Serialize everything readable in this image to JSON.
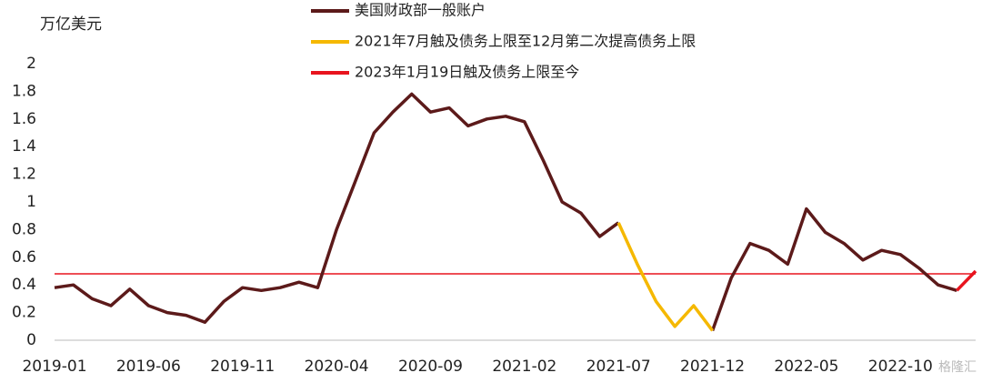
{
  "chart_data": {
    "type": "line",
    "y_label": "万亿美元",
    "categories": [
      "2019-01",
      null,
      null,
      null,
      null,
      "2019-06",
      null,
      null,
      null,
      null,
      "2019-11",
      null,
      null,
      null,
      null,
      "2020-04",
      null,
      null,
      null,
      null,
      "2020-09",
      null,
      null,
      null,
      null,
      "2021-02",
      null,
      null,
      null,
      null,
      "2021-07",
      null,
      null,
      null,
      null,
      "2021-12",
      null,
      null,
      null,
      null,
      "2022-05",
      null,
      null,
      null,
      null,
      "2022-10",
      null,
      null,
      null,
      null
    ],
    "series": [
      {
        "name": "美国财政部一般账户",
        "color": "#5c1a1a",
        "values": [
          0.38,
          0.4,
          0.3,
          0.25,
          0.37,
          0.25,
          0.2,
          0.18,
          0.13,
          0.28,
          0.38,
          0.36,
          0.38,
          0.42,
          0.38,
          0.8,
          1.15,
          1.5,
          1.65,
          1.78,
          1.65,
          1.68,
          1.55,
          1.6,
          1.62,
          1.58,
          1.3,
          1.0,
          0.92,
          0.75,
          0.85,
          null,
          null,
          null,
          null,
          0.07,
          0.45,
          0.7,
          0.65,
          0.55,
          0.95,
          0.78,
          0.7,
          0.58,
          0.65,
          0.62,
          0.52,
          0.4,
          0.36,
          null
        ]
      },
      {
        "name": "2021年7月触及债务上限至12月第二次提高债务上限",
        "color": "#f5b800",
        "values": [
          null,
          null,
          null,
          null,
          null,
          null,
          null,
          null,
          null,
          null,
          null,
          null,
          null,
          null,
          null,
          null,
          null,
          null,
          null,
          null,
          null,
          null,
          null,
          null,
          null,
          null,
          null,
          null,
          null,
          null,
          0.85,
          0.55,
          0.28,
          0.1,
          0.25,
          0.07,
          null,
          null,
          null,
          null,
          null,
          null,
          null,
          null,
          null,
          null,
          null,
          null,
          null,
          null
        ]
      },
      {
        "name": "2023年1月19日触及债务上限至今",
        "color": "#e8141e",
        "values": [
          null,
          null,
          null,
          null,
          null,
          null,
          null,
          null,
          null,
          null,
          null,
          null,
          null,
          null,
          null,
          null,
          null,
          null,
          null,
          null,
          null,
          null,
          null,
          null,
          null,
          null,
          null,
          null,
          null,
          null,
          null,
          null,
          null,
          null,
          null,
          null,
          null,
          null,
          null,
          null,
          null,
          null,
          null,
          null,
          null,
          null,
          null,
          null,
          0.36,
          0.5
        ]
      }
    ],
    "reference_line": {
      "value": 0.48,
      "color": "#e8141e"
    },
    "ylim": [
      0,
      2
    ],
    "yticks": [
      0,
      0.2,
      0.4,
      0.6,
      0.8,
      1,
      1.2,
      1.4,
      1.6,
      1.8,
      2
    ],
    "grid": false,
    "watermark": "格隆汇"
  }
}
